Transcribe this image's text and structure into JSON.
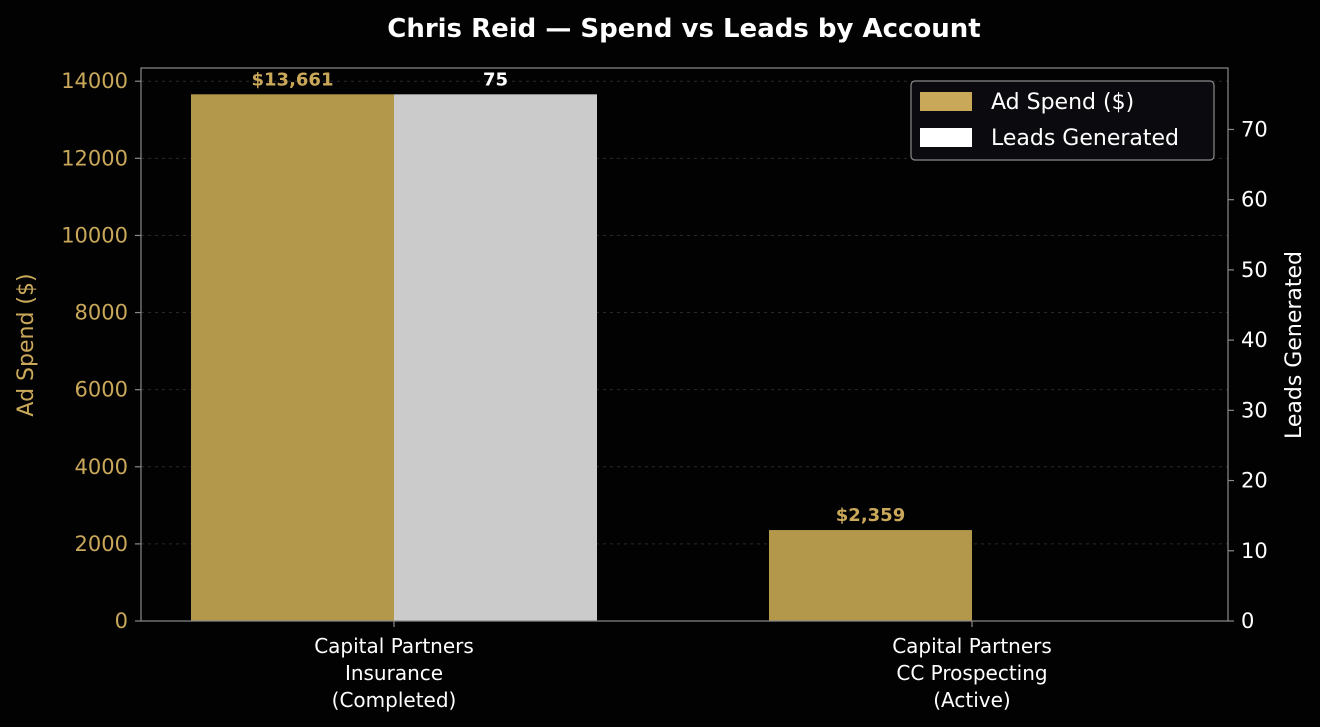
{
  "chart_data": {
    "type": "bar",
    "title": "Chris Reid — Spend vs Leads by Account",
    "categories": [
      [
        "Capital Partners",
        "Insurance",
        "(Completed)"
      ],
      [
        "Capital Partners",
        "CC Prospecting",
        "(Active)"
      ]
    ],
    "series": [
      {
        "name": "Ad Spend ($)",
        "axis": "left",
        "values": [
          13661,
          2359
        ],
        "labels": [
          "$13,661",
          "$2,359"
        ],
        "color": "#b3974a",
        "label_color": "#c9a85a"
      },
      {
        "name": "Leads Generated",
        "axis": "right",
        "values": [
          75,
          0
        ],
        "labels": [
          "75",
          ""
        ],
        "color": "#cbcbcb",
        "label_color": "#ffffff"
      }
    ],
    "y_left": {
      "label": "Ad Spend ($)",
      "lim": [
        0,
        14343
      ],
      "ticks": [
        0,
        2000,
        4000,
        6000,
        8000,
        10000,
        12000,
        14000
      ],
      "tick_labels": [
        "0",
        "2000",
        "4000",
        "6000",
        "8000",
        "10000",
        "12000",
        "14000"
      ],
      "color": "#c9a85a"
    },
    "y_right": {
      "label": "Leads Generated",
      "lim": [
        0,
        78.75
      ],
      "ticks": [
        0,
        10,
        20,
        30,
        40,
        50,
        60,
        70
      ],
      "tick_labels": [
        "0",
        "10",
        "20",
        "30",
        "40",
        "50",
        "60",
        "70"
      ],
      "color": "#ffffff"
    },
    "legend": {
      "position": "top-right",
      "entries": [
        {
          "label": "Ad Spend ($)",
          "color": "#c9a85a"
        },
        {
          "label": "Leads Generated",
          "color": "#ffffff"
        }
      ]
    },
    "grid": true,
    "background": "#020203",
    "frame_color": "#8a8a8a"
  }
}
